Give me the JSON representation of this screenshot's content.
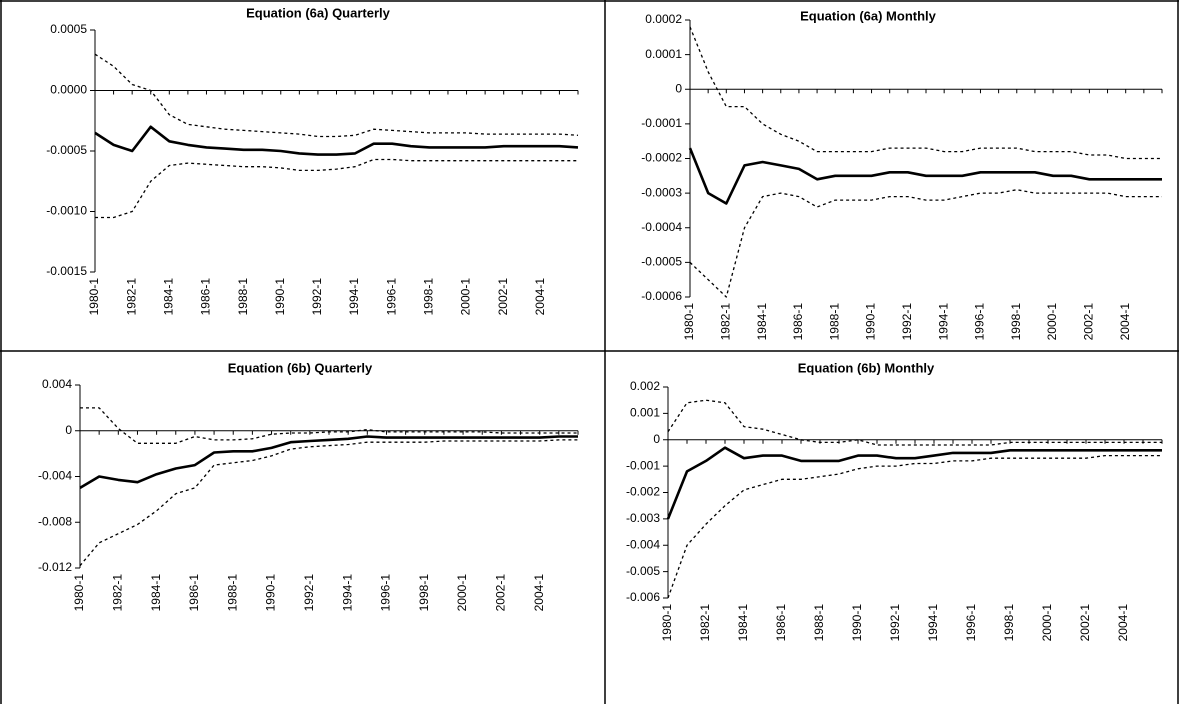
{
  "chart_data": [
    {
      "type": "line",
      "title": "Equation (6a) Quarterly",
      "categories": [
        "1980-1",
        null,
        "1982-1",
        null,
        "1984-1",
        null,
        "1986-1",
        null,
        "1988-1",
        null,
        "1990-1",
        null,
        "1992-1",
        null,
        "1994-1",
        null,
        "1996-1",
        null,
        "1998-1",
        null,
        "2000-1",
        null,
        "2002-1",
        null,
        "2004-1",
        null,
        null
      ],
      "ylim": [
        -0.0015,
        0.0005
      ],
      "yticks": [
        -0.0015,
        {
          "value": -0.001,
          "label": "-0.0010"
        },
        -0.0005,
        {
          "value": 0,
          "label": "0.0000"
        },
        0.0005
      ],
      "series": [
        {
          "color": "#000000",
          "line_style": "solid",
          "values": [
            -0.00035,
            -0.00045,
            -0.0005,
            -0.0003,
            -0.00042,
            -0.00045,
            -0.00047,
            -0.00048,
            -0.00049,
            -0.00049,
            -0.0005,
            -0.00052,
            -0.00053,
            -0.00053,
            -0.00052,
            -0.00044,
            -0.00044,
            -0.00046,
            -0.00047,
            -0.00047,
            -0.00047,
            -0.00047,
            -0.00046,
            -0.00046,
            -0.00046,
            -0.00046,
            -0.00047
          ]
        },
        {
          "color": "#000000",
          "line_style": "dotted",
          "values": [
            0.0003,
            0.0002,
            5e-05,
            0,
            -0.0002,
            -0.00028,
            -0.0003,
            -0.00032,
            -0.00033,
            -0.00034,
            -0.00035,
            -0.00036,
            -0.00038,
            -0.00038,
            -0.00037,
            -0.00032,
            -0.00033,
            -0.00034,
            -0.00035,
            -0.00035,
            -0.00035,
            -0.00036,
            -0.00036,
            -0.00036,
            -0.00036,
            -0.00036,
            -0.00037
          ]
        },
        {
          "color": "#000000",
          "line_style": "dotted",
          "values": [
            -0.00105,
            -0.00105,
            -0.001,
            -0.00075,
            -0.00062,
            -0.0006,
            -0.00061,
            -0.00062,
            -0.00063,
            -0.00063,
            -0.00064,
            -0.00066,
            -0.00066,
            -0.00065,
            -0.00063,
            -0.00057,
            -0.00057,
            -0.00058,
            -0.00058,
            -0.00058,
            -0.00058,
            -0.00058,
            -0.00058,
            -0.00058,
            -0.00058,
            -0.00058,
            -0.00058
          ]
        }
      ]
    },
    {
      "type": "line",
      "title": "Equation (6a) Monthly",
      "categories": [
        "1980-1",
        null,
        "1982-1",
        null,
        "1984-1",
        null,
        "1986-1",
        null,
        "1988-1",
        null,
        "1990-1",
        null,
        "1992-1",
        null,
        "1994-1",
        null,
        "1996-1",
        null,
        "1998-1",
        null,
        "2000-1",
        null,
        "2002-1",
        null,
        "2004-1",
        null,
        null
      ],
      "ylim": [
        -0.0006,
        0.0002
      ],
      "yticks": [
        -0.0006,
        -0.0005,
        -0.0004,
        -0.0003,
        -0.0002,
        -0.0001,
        0,
        0.0001,
        0.0002
      ],
      "series": [
        {
          "color": "#000000",
          "line_style": "solid",
          "values": [
            -0.00017,
            -0.0003,
            -0.00033,
            -0.00022,
            -0.00021,
            -0.00022,
            -0.00023,
            -0.00026,
            -0.00025,
            -0.00025,
            -0.00025,
            -0.00024,
            -0.00024,
            -0.00025,
            -0.00025,
            -0.00025,
            -0.00024,
            -0.00024,
            -0.00024,
            -0.00024,
            -0.00025,
            -0.00025,
            -0.00026,
            -0.00026,
            -0.00026,
            -0.00026,
            -0.00026
          ]
        },
        {
          "color": "#000000",
          "line_style": "dotted",
          "values": [
            0.00018,
            5e-05,
            -5e-05,
            -5e-05,
            -0.0001,
            -0.00013,
            -0.00015,
            -0.00018,
            -0.00018,
            -0.00018,
            -0.00018,
            -0.00017,
            -0.00017,
            -0.00017,
            -0.00018,
            -0.00018,
            -0.00017,
            -0.00017,
            -0.00017,
            -0.00018,
            -0.00018,
            -0.00018,
            -0.00019,
            -0.00019,
            -0.0002,
            -0.0002,
            -0.0002
          ]
        },
        {
          "color": "#000000",
          "line_style": "dotted",
          "values": [
            -0.0005,
            -0.00055,
            -0.0006,
            -0.0004,
            -0.00031,
            -0.0003,
            -0.00031,
            -0.00034,
            -0.00032,
            -0.00032,
            -0.00032,
            -0.00031,
            -0.00031,
            -0.00032,
            -0.00032,
            -0.00031,
            -0.0003,
            -0.0003,
            -0.00029,
            -0.0003,
            -0.0003,
            -0.0003,
            -0.0003,
            -0.0003,
            -0.00031,
            -0.00031,
            -0.00031
          ]
        }
      ]
    },
    {
      "type": "line",
      "title": "Equation (6b) Quarterly",
      "categories": [
        "1980-1",
        null,
        "1982-1",
        null,
        "1984-1",
        null,
        "1986-1",
        null,
        "1988-1",
        null,
        "1990-1",
        null,
        "1992-1",
        null,
        "1994-1",
        null,
        "1996-1",
        null,
        "1998-1",
        null,
        "2000-1",
        null,
        "2002-1",
        null,
        "2004-1",
        null,
        null
      ],
      "ylim": [
        -0.012,
        0.004
      ],
      "yticks": [
        -0.012,
        -0.008,
        -0.004,
        0,
        0.004
      ],
      "series": [
        {
          "color": "#000000",
          "line_style": "solid",
          "values": [
            -0.005,
            -0.004,
            -0.0043,
            -0.0045,
            -0.0038,
            -0.0033,
            -0.003,
            -0.0019,
            -0.0018,
            -0.0018,
            -0.0015,
            -0.001,
            -0.0009,
            -0.0008,
            -0.0007,
            -0.0005,
            -0.0006,
            -0.0006,
            -0.0006,
            -0.0006,
            -0.0006,
            -0.0006,
            -0.0006,
            -0.0006,
            -0.0006,
            -0.0005,
            -0.0005
          ]
        },
        {
          "color": "#000000",
          "line_style": "dotted",
          "values": [
            0.002,
            0.002,
            0.0002,
            -0.0011,
            -0.0011,
            -0.0011,
            -0.0005,
            -0.0008,
            -0.0008,
            -0.0007,
            -0.0003,
            -0.0002,
            -0.0002,
            -0.0001,
            -0.0001,
            0.0001,
            -0.0001,
            -0.0001,
            -0.0001,
            -0.0001,
            -0.0001,
            -0.0001,
            -0.0002,
            -0.0002,
            -0.0002,
            -0.0002,
            -0.0002
          ]
        },
        {
          "color": "#000000",
          "line_style": "dotted",
          "values": [
            -0.0118,
            -0.0098,
            -0.009,
            -0.0082,
            -0.007,
            -0.0055,
            -0.005,
            -0.003,
            -0.0028,
            -0.0026,
            -0.0022,
            -0.0016,
            -0.0014,
            -0.0013,
            -0.0012,
            -0.001,
            -0.001,
            -0.001,
            -0.001,
            -0.0009,
            -0.0009,
            -0.0009,
            -0.0009,
            -0.0009,
            -0.0009,
            -0.0008,
            -0.0008
          ]
        }
      ]
    },
    {
      "type": "line",
      "title": "Equation (6b) Monthly",
      "categories": [
        "1980-1",
        null,
        "1982-1",
        null,
        "1984-1",
        null,
        "1986-1",
        null,
        "1988-1",
        null,
        "1990-1",
        null,
        "1992-1",
        null,
        "1994-1",
        null,
        "1996-1",
        null,
        "1998-1",
        null,
        "2000-1",
        null,
        "2002-1",
        null,
        "2004-1",
        null,
        null
      ],
      "ylim": [
        -0.006,
        0.002
      ],
      "yticks": [
        -0.006,
        -0.005,
        -0.004,
        -0.003,
        -0.002,
        -0.001,
        0,
        0.001,
        0.002
      ],
      "series": [
        {
          "color": "#000000",
          "line_style": "solid",
          "values": [
            -0.003,
            -0.0012,
            -0.0008,
            -0.0003,
            -0.0007,
            -0.0006,
            -0.0006,
            -0.0008,
            -0.0008,
            -0.0008,
            -0.0006,
            -0.0006,
            -0.0007,
            -0.0007,
            -0.0006,
            -0.0005,
            -0.0005,
            -0.0005,
            -0.0004,
            -0.0004,
            -0.0004,
            -0.0004,
            -0.0004,
            -0.0004,
            -0.0004,
            -0.0004,
            -0.0004
          ]
        },
        {
          "color": "#000000",
          "line_style": "dotted",
          "values": [
            0.0003,
            0.0014,
            0.0015,
            0.0014,
            0.0005,
            0.0004,
            0.0002,
            0,
            -0.0001,
            -0.0001,
            0,
            -0.0002,
            -0.0002,
            -0.0002,
            -0.0002,
            -0.0002,
            -0.0002,
            -0.0002,
            -0.0001,
            -0.0001,
            -0.0001,
            -0.0001,
            -0.0001,
            -0.0001,
            -0.0001,
            -0.0001,
            -0.0001
          ]
        },
        {
          "color": "#000000",
          "line_style": "dotted",
          "values": [
            -0.006,
            -0.004,
            -0.0032,
            -0.0025,
            -0.0019,
            -0.0017,
            -0.0015,
            -0.0015,
            -0.0014,
            -0.0013,
            -0.0011,
            -0.001,
            -0.001,
            -0.0009,
            -0.0009,
            -0.0008,
            -0.0008,
            -0.0007,
            -0.0007,
            -0.0007,
            -0.0007,
            -0.0007,
            -0.0007,
            -0.0006,
            -0.0006,
            -0.0006,
            -0.0006
          ]
        }
      ]
    }
  ]
}
